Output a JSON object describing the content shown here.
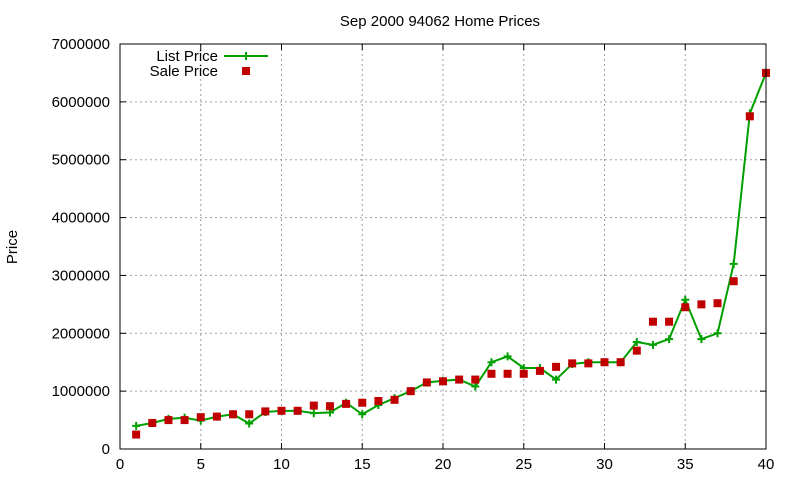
{
  "chart_data": {
    "type": "line",
    "title": "Sep 2000 94062 Home Prices",
    "xlabel": "",
    "ylabel": "Price",
    "xlim": [
      0,
      40
    ],
    "ylim": [
      0,
      7000000
    ],
    "xticks": [
      0,
      5,
      10,
      15,
      20,
      25,
      30,
      35,
      40
    ],
    "yticks": [
      0,
      1000000,
      2000000,
      3000000,
      4000000,
      5000000,
      6000000,
      7000000
    ],
    "grid": true,
    "legend_position": "top-left",
    "x": [
      1,
      2,
      3,
      4,
      5,
      6,
      7,
      8,
      9,
      10,
      11,
      12,
      13,
      14,
      15,
      16,
      17,
      18,
      19,
      20,
      21,
      22,
      23,
      24,
      25,
      26,
      27,
      28,
      29,
      30,
      31,
      32,
      33,
      34,
      35,
      36,
      37,
      38,
      39,
      40
    ],
    "series": [
      {
        "name": "List Price",
        "style": "line-points",
        "color": "#00a000",
        "values": [
          400000,
          450000,
          520000,
          540000,
          490000,
          560000,
          600000,
          440000,
          640000,
          660000,
          660000,
          620000,
          630000,
          800000,
          600000,
          760000,
          880000,
          1000000,
          1150000,
          1180000,
          1200000,
          1080000,
          1500000,
          1600000,
          1400000,
          1400000,
          1200000,
          1470000,
          1500000,
          1500000,
          1500000,
          1850000,
          1800000,
          1900000,
          2580000,
          1900000,
          2000000,
          3200000,
          5800000,
          6500000
        ]
      },
      {
        "name": "Sale Price",
        "style": "points",
        "color": "#c00000",
        "values": [
          250000,
          450000,
          500000,
          500000,
          550000,
          560000,
          600000,
          600000,
          650000,
          660000,
          660000,
          750000,
          740000,
          780000,
          800000,
          830000,
          850000,
          1000000,
          1150000,
          1170000,
          1200000,
          1200000,
          1300000,
          1300000,
          1300000,
          1350000,
          1420000,
          1480000,
          1480000,
          1500000,
          1500000,
          1700000,
          2200000,
          2200000,
          2450000,
          2500000,
          2520000,
          2900000,
          5750000,
          6500000
        ]
      }
    ]
  },
  "colors": {
    "list_line": "#00a000",
    "sale_point": "#c00000",
    "grid": "#a0a0a0"
  }
}
